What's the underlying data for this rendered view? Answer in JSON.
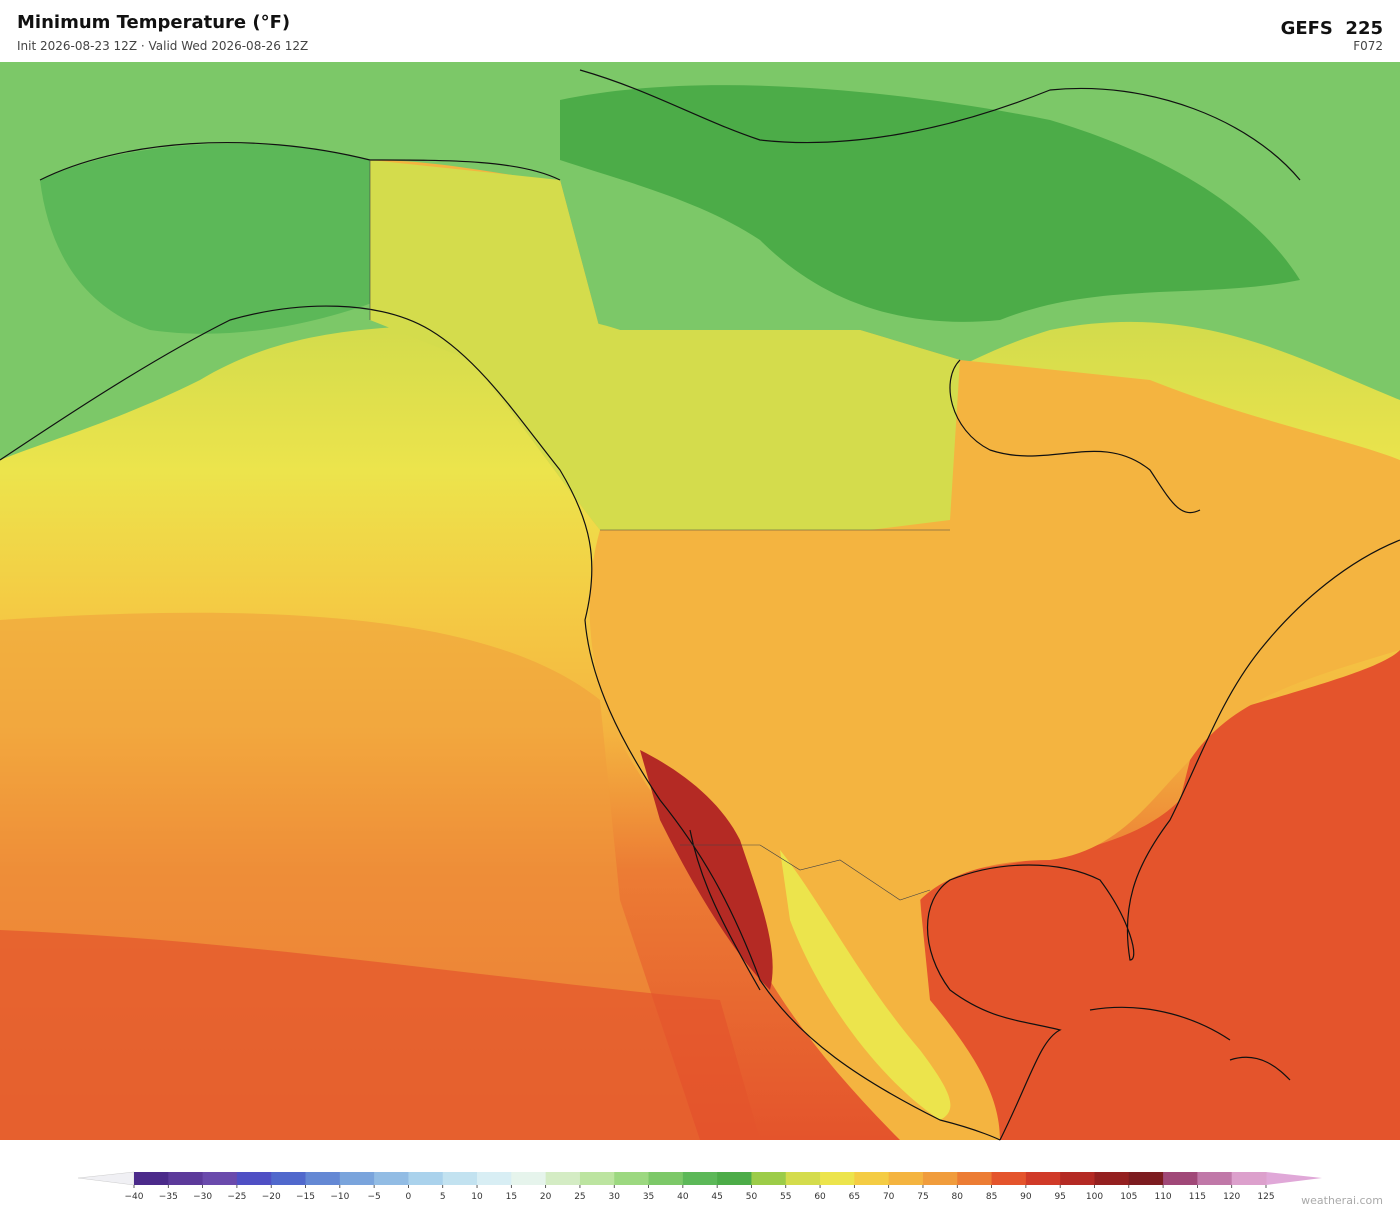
{
  "header": {
    "title": "Minimum Temperature  (°F)",
    "subtitle": "Init 2026-08-23 12Z  ·  Valid Wed 2026-08-26 12Z",
    "model": "GEFS  225",
    "forecast_hour": "F072"
  },
  "colorbar": {
    "ticks": [
      {
        "value": -40,
        "label": "−40"
      },
      {
        "value": -35,
        "label": "−35"
      },
      {
        "value": -30,
        "label": "−30"
      },
      {
        "value": -25,
        "label": "−25"
      },
      {
        "value": -20,
        "label": "−20"
      },
      {
        "value": -15,
        "label": "−15"
      },
      {
        "value": -10,
        "label": "−10"
      },
      {
        "value": -5,
        "label": "−5"
      },
      0,
      5,
      10,
      15,
      20,
      25,
      30,
      35,
      40,
      45,
      50,
      55,
      60,
      65,
      70,
      75,
      80,
      85,
      90,
      95,
      100,
      105,
      110,
      115,
      120,
      125
    ],
    "colors": [
      "#4b2a8a",
      "#5c3a9a",
      "#6a4aac",
      "#4f4fc4",
      "#5068cc",
      "#6488d4",
      "#7aa4dc",
      "#92bce4",
      "#aad2ec",
      "#c2e2f0",
      "#d8eef4",
      "#e6f4ec",
      "#d4ecc4",
      "#bce4a0",
      "#9cd880",
      "#7cc868",
      "#5cb858",
      "#4cac48",
      "#9ccc48",
      "#d4dc4c",
      "#ece44c",
      "#f4cc44",
      "#f4b440",
      "#f09c3c",
      "#ec7c34",
      "#e4542c",
      "#d03a28",
      "#b42a24",
      "#942020",
      "#7c1c20",
      "#a04878",
      "#c078a8",
      "#dca0cc"
    ]
  },
  "footer": {
    "watermark": "weatherai.com"
  }
}
